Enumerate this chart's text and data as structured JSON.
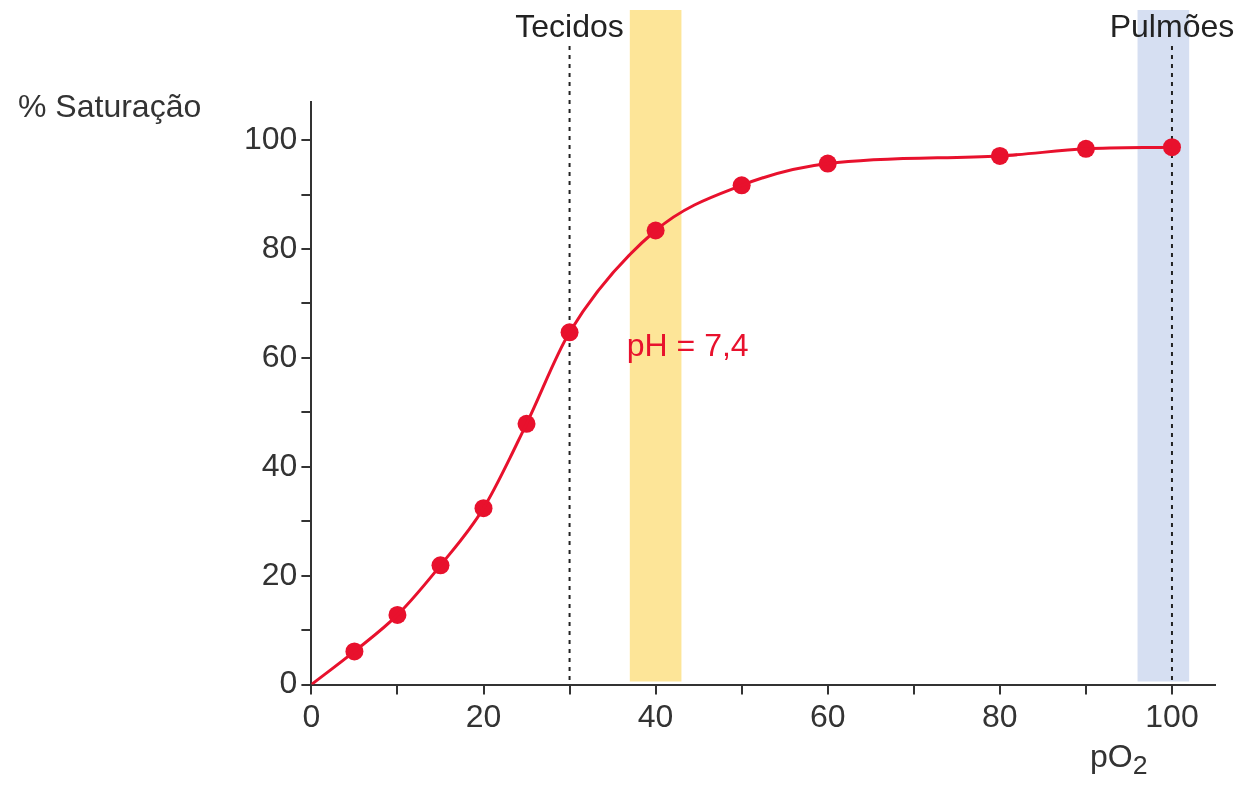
{
  "chart_data": {
    "type": "scatter",
    "xlabel": "pO$_{2}$",
    "ylabel": "% Saturação",
    "xlim": [
      0,
      105
    ],
    "ylim": [
      0,
      107
    ],
    "xticks": [
      0,
      {
        "value": 10,
        "label": null
      },
      20,
      {
        "value": 30,
        "label": null
      },
      40,
      {
        "value": 50,
        "label": null
      },
      60,
      {
        "value": 70,
        "label": null
      },
      80,
      {
        "value": 90,
        "label": null
      },
      100
    ],
    "yticks": [
      0,
      {
        "value": 10,
        "label": null
      },
      20,
      {
        "value": 30,
        "label": null
      },
      40,
      {
        "value": 50,
        "label": null
      },
      60,
      {
        "value": 70,
        "label": null
      },
      80,
      {
        "value": 90,
        "label": null
      },
      100
    ],
    "series": [
      {
        "type": "line",
        "marker": "none",
        "color": "#e8112d",
        "x": [
          0,
          5,
          10,
          15,
          20,
          25,
          30,
          40,
          50,
          60,
          80,
          90,
          100
        ],
        "values": [
          0,
          6.1,
          12.8,
          21.9,
          32.4,
          47.9,
          64.7,
          83.4,
          91.7,
          95.7,
          97.1,
          98.4,
          98.7
        ]
      },
      {
        "type": "scatter",
        "marker": "circle",
        "color": "#e8112d",
        "x": [
          5,
          10,
          15,
          20,
          25,
          30,
          40,
          50,
          60,
          80,
          90,
          100
        ],
        "values": [
          6.1,
          12.8,
          21.9,
          32.4,
          47.9,
          64.7,
          83.4,
          91.7,
          95.7,
          97.1,
          98.4,
          98.7
        ]
      }
    ],
    "line_style": "solid",
    "grid": false,
    "legend": false,
    "ref_lines": [
      {
        "axis": "x",
        "value": 30,
        "label": "Tecidos",
        "line_style": "dotted",
        "color": "#222222"
      },
      {
        "axis": "x",
        "value": 100,
        "label": "Pulmões",
        "line_style": "dotted",
        "color": "#222222"
      }
    ],
    "bands": [
      {
        "axis": "x",
        "from": 37,
        "to": 43,
        "color": "#fde598"
      },
      {
        "axis": "x",
        "from": 96,
        "to": 102,
        "color": "#d6dff2"
      }
    ],
    "annotations": [
      "pH = 7,4"
    ]
  }
}
